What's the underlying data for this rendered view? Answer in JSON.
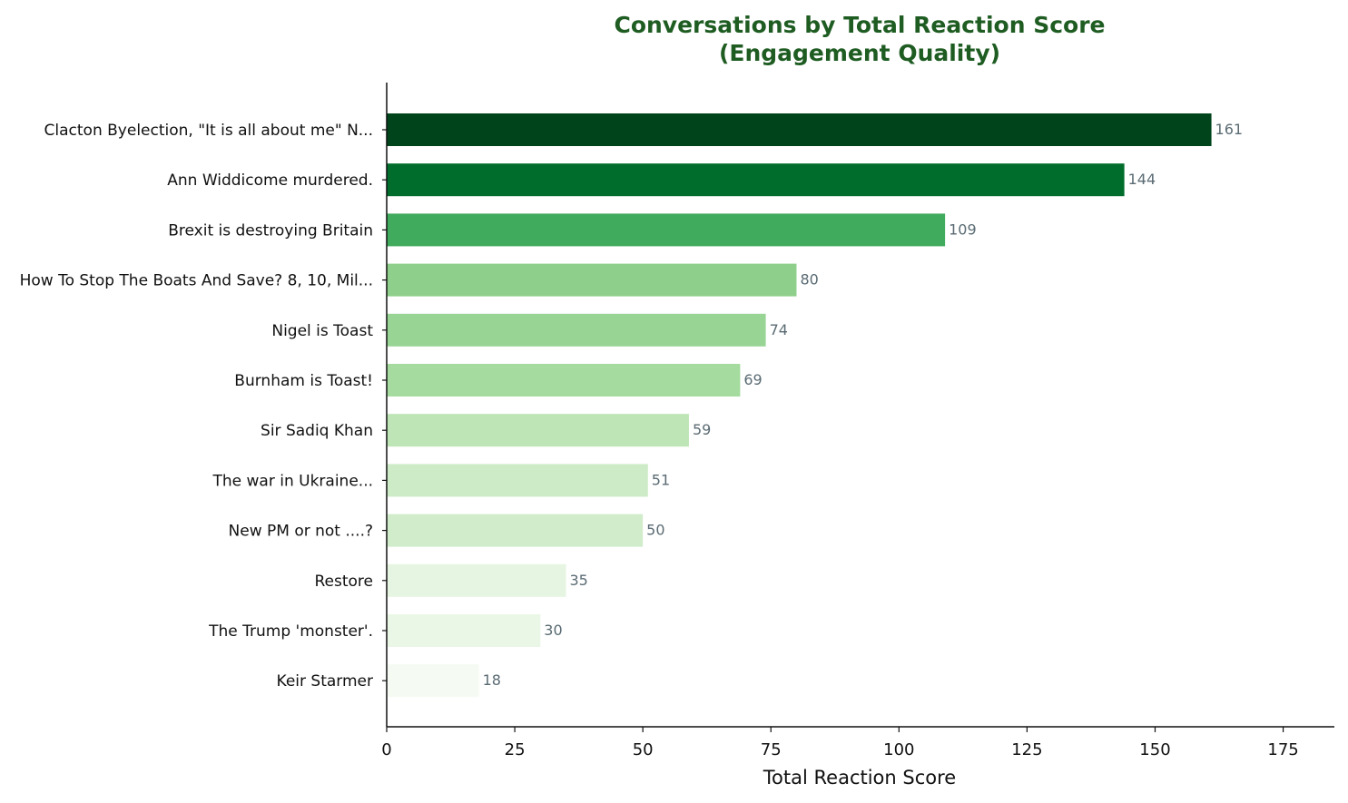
{
  "chart_data": {
    "type": "bar",
    "orientation": "horizontal",
    "title_lines": [
      "Conversations by Total Reaction Score",
      "(Engagement Quality)"
    ],
    "xlabel": "Total Reaction Score",
    "ylabel": "",
    "xlim": [
      0,
      185
    ],
    "xticks": [
      0,
      25,
      50,
      75,
      100,
      125,
      150,
      175
    ],
    "grid": false,
    "legend": "none",
    "categories": [
      "Clacton Byelection, \"It is all about me\" N...",
      "Ann Widdicome murdered.",
      "Brexit is destroying Britain",
      "How To Stop The Boats And Save? 8, 10, Mil...",
      "Nigel is Toast",
      "Burnham is Toast!",
      "Sir Sadiq Khan",
      "The war in Ukraine...",
      "New PM or not ....?",
      "Restore",
      "The Trump 'monster'.",
      "Keir Starmer"
    ],
    "values": [
      161,
      144,
      109,
      80,
      74,
      69,
      59,
      51,
      50,
      35,
      30,
      18
    ],
    "bar_colors": [
      "#00441b",
      "#006d2c",
      "#41ab5d",
      "#8ed08b",
      "#98d594",
      "#a5db9f",
      "#bde5b6",
      "#cdebc6",
      "#d0ecca",
      "#e6f5e1",
      "#eaf7e6",
      "#f5fbf2"
    ],
    "colors": {
      "title": "#1e5c22",
      "value_label": "#5a6b73",
      "axis": "#111111"
    }
  }
}
